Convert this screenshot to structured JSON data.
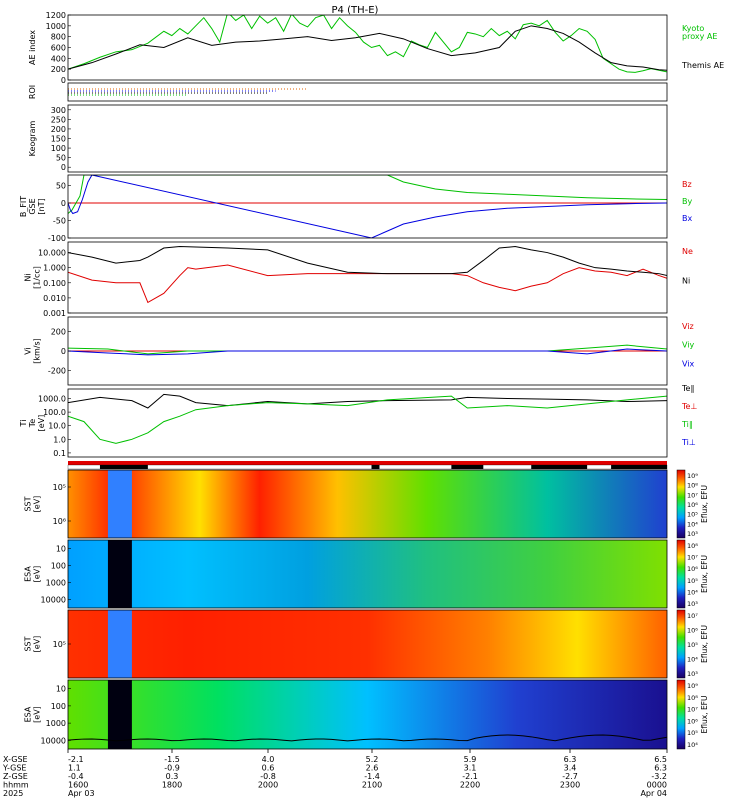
{
  "title": "P4 (TH-E)",
  "colors": {
    "ae_kyoto": "#00c000",
    "ae_themis": "#000000",
    "red": "#e00000",
    "green": "#00c000",
    "blue": "#0000e0"
  },
  "chart_data": [
    {
      "id": "ae",
      "type": "line",
      "ylabel": "AE index",
      "yticks": [
        "0",
        "200",
        "400",
        "600",
        "800",
        "1000",
        "1200"
      ],
      "ylim": [
        0,
        1200
      ],
      "x_range": [
        1600,
        2350
      ],
      "series": [
        {
          "name": "Kyoto proxy AE",
          "label_lines": [
            "Kyoto",
            "proxy AE"
          ],
          "color": "#00c000",
          "x": [
            1600,
            1620,
            1640,
            1660,
            1680,
            1700,
            1720,
            1730,
            1740,
            1750,
            1760,
            1770,
            1780,
            1790,
            1800,
            1810,
            1820,
            1830,
            1840,
            1850,
            1860,
            1870,
            1880,
            1890,
            1900,
            1910,
            1920,
            1930,
            1940,
            1950,
            1960,
            1970,
            1980,
            1990,
            2000,
            2010,
            2020,
            2030,
            2040,
            2050,
            2060,
            2070,
            2080,
            2090,
            2100,
            2110,
            2120,
            2130,
            2140,
            2150,
            2160,
            2170,
            2180,
            2190,
            2200,
            2210,
            2220,
            2230,
            2240,
            2250,
            2260,
            2270,
            2280,
            2290,
            2300,
            2310,
            2320,
            2330,
            2340,
            2350
          ],
          "y": [
            200,
            300,
            420,
            520,
            560,
            680,
            900,
            820,
            950,
            850,
            1000,
            1150,
            950,
            700,
            1250,
            1100,
            1200,
            950,
            1180,
            1050,
            1150,
            900,
            1220,
            1050,
            980,
            1150,
            1200,
            950,
            1150,
            1000,
            880,
            700,
            600,
            640,
            450,
            520,
            430,
            720,
            650,
            600,
            880,
            700,
            520,
            600,
            880,
            850,
            800,
            950,
            820,
            900,
            760,
            1020,
            1050,
            1000,
            1100,
            880,
            720,
            820,
            950,
            900,
            750,
            400,
            300,
            200,
            150,
            140,
            170,
            210,
            180,
            150
          ]
        },
        {
          "name": "Themis AE",
          "label_lines": [
            "Themis AE"
          ],
          "color": "#000000",
          "x": [
            1600,
            1630,
            1660,
            1690,
            1720,
            1750,
            1780,
            1810,
            1840,
            1870,
            1900,
            1930,
            1960,
            1990,
            2020,
            2050,
            2080,
            2110,
            2140,
            2160,
            2180,
            2200,
            2220,
            2240,
            2260,
            2280,
            2300,
            2320,
            2340,
            2350
          ],
          "y": [
            200,
            320,
            480,
            650,
            600,
            780,
            640,
            700,
            720,
            760,
            800,
            730,
            780,
            860,
            760,
            580,
            450,
            500,
            600,
            900,
            1000,
            950,
            860,
            700,
            500,
            320,
            260,
            240,
            190,
            180
          ]
        }
      ]
    },
    {
      "id": "roi",
      "type": "line",
      "ylabel": "ROI",
      "yticks": [],
      "series": [
        {
          "name": "roi-1",
          "color": "#e06000",
          "x": [
            1600,
            1900
          ],
          "y": [
            1,
            1
          ]
        },
        {
          "name": "roi-2",
          "color": "#0000e0",
          "x": [
            1600,
            1860
          ],
          "y": [
            2,
            2
          ]
        },
        {
          "name": "roi-3",
          "color": "#000000",
          "x": [
            1600,
            1850
          ],
          "y": [
            3,
            3
          ]
        },
        {
          "name": "roi-4",
          "color": "#00c000",
          "x": [
            1600,
            1750
          ],
          "y": [
            4,
            4
          ]
        }
      ]
    },
    {
      "id": "keogram",
      "type": "heatmap",
      "ylabel": "Keogram",
      "yticks": [
        "0",
        "50",
        "100",
        "150",
        "200",
        "250",
        "300"
      ],
      "ylim": [
        0,
        300
      ]
    },
    {
      "id": "bfield",
      "type": "line",
      "ylabel_lines": [
        "B_FIT",
        "GSE",
        "[nT]"
      ],
      "yticks": [
        "-100",
        "-50",
        "0",
        "50"
      ],
      "ylim": [
        -100,
        80
      ],
      "series": [
        {
          "name": "Bz",
          "color": "#e00000",
          "x": [
            1600,
            2350
          ],
          "y": [
            0,
            0
          ]
        },
        {
          "name": "By",
          "color": "#00c000",
          "x": [
            1600,
            1605,
            1615,
            1620,
            1640,
            1650,
            1660,
            2000,
            2020,
            2060,
            2100,
            2150,
            2200,
            2250,
            2300,
            2350
          ],
          "y": [
            -30,
            -20,
            20,
            80,
            80,
            80,
            80,
            80,
            60,
            40,
            30,
            25,
            20,
            15,
            12,
            10
          ]
        },
        {
          "name": "Bx",
          "color": "#0000e0",
          "x": [
            1600,
            1603,
            1606,
            1612,
            1618,
            1625,
            1630,
            1980,
            2000,
            2020,
            2060,
            2100,
            2150,
            2200,
            2250,
            2300,
            2350
          ],
          "y": [
            0,
            -20,
            -30,
            -25,
            10,
            60,
            80,
            -100,
            -80,
            -60,
            -40,
            -25,
            -15,
            -10,
            -5,
            -2,
            0
          ]
        }
      ]
    },
    {
      "id": "density",
      "type": "line",
      "ylabel_lines": [
        "Ni",
        "[1/cc]"
      ],
      "ylog": true,
      "yticks": [
        "0.001",
        "0.010",
        "0.100",
        "1.000",
        "10.000"
      ],
      "ylim": [
        0.001,
        50
      ],
      "series": [
        {
          "name": "Ne",
          "color": "#e00000",
          "x": [
            1600,
            1630,
            1660,
            1690,
            1700,
            1720,
            1740,
            1750,
            1760,
            1800,
            1850,
            1900,
            2000,
            2080,
            2100,
            2120,
            2140,
            2160,
            2180,
            2200,
            2220,
            2240,
            2260,
            2280,
            2300,
            2320,
            2340,
            2350
          ],
          "y": [
            0.5,
            0.15,
            0.1,
            0.1,
            0.005,
            0.02,
            0.3,
            1,
            0.8,
            1.5,
            0.3,
            0.4,
            0.4,
            0.4,
            0.3,
            0.1,
            0.05,
            0.03,
            0.06,
            0.1,
            0.4,
            1,
            0.6,
            0.5,
            0.3,
            0.8,
            0.3,
            0.2
          ]
        },
        {
          "name": "Ni",
          "color": "#000000",
          "x": [
            1600,
            1630,
            1660,
            1690,
            1700,
            1720,
            1740,
            1800,
            1850,
            1900,
            1950,
            2000,
            2080,
            2100,
            2120,
            2140,
            2160,
            2180,
            2200,
            2220,
            2240,
            2260,
            2280,
            2300,
            2320,
            2340,
            2350
          ],
          "y": [
            10,
            5,
            2,
            3,
            5,
            20,
            25,
            20,
            15,
            2,
            0.5,
            0.4,
            0.4,
            0.5,
            3,
            20,
            25,
            15,
            10,
            5,
            2,
            1,
            0.8,
            0.6,
            0.5,
            0.4,
            0.3
          ]
        }
      ]
    },
    {
      "id": "velocity",
      "type": "line",
      "ylabel_lines": [
        "Vi",
        "[km/s]"
      ],
      "yticks": [
        "-200",
        "0",
        "200"
      ],
      "ylim": [
        -350,
        350
      ],
      "series": [
        {
          "name": "Viz",
          "color": "#e00000",
          "x": [
            1600,
            2350
          ],
          "y": [
            0,
            0
          ]
        },
        {
          "name": "Viy",
          "color": "#00c000",
          "x": [
            1600,
            1650,
            1700,
            1750,
            2200,
            2250,
            2300,
            2350
          ],
          "y": [
            30,
            20,
            -30,
            0,
            0,
            30,
            60,
            20
          ]
        },
        {
          "name": "Vix",
          "color": "#0000e0",
          "x": [
            1600,
            1650,
            1700,
            1750,
            1800,
            2200,
            2250,
            2300,
            2350
          ],
          "y": [
            0,
            -20,
            -40,
            -30,
            0,
            0,
            -30,
            20,
            0
          ]
        }
      ]
    },
    {
      "id": "temperature",
      "type": "line",
      "ylabel_lines": [
        "Ti",
        "Te",
        "[eV]"
      ],
      "ylog": true,
      "yticks": [
        "0.1",
        "1.0",
        "10.0",
        "100.0",
        "1000.0"
      ],
      "ylim": [
        0.05,
        5000
      ],
      "legend": [
        "Te∥",
        "Te⊥",
        "Ti∥",
        "Ti⊥"
      ],
      "series": [
        {
          "name": "Te",
          "color": "#000000",
          "x": [
            1600,
            1640,
            1680,
            1700,
            1720,
            1740,
            1760,
            1800,
            1850,
            1900,
            1950,
            2000,
            2080,
            2100,
            2150,
            2200,
            2250,
            2300,
            2350
          ],
          "y": [
            500,
            1200,
            700,
            200,
            2000,
            1500,
            500,
            300,
            600,
            400,
            600,
            700,
            800,
            1200,
            1000,
            900,
            800,
            600,
            700
          ]
        },
        {
          "name": "Ti",
          "color": "#00c000",
          "x": [
            1600,
            1620,
            1640,
            1660,
            1680,
            1700,
            1720,
            1740,
            1760,
            1800,
            1850,
            1900,
            1950,
            2000,
            2080,
            2100,
            2150,
            2200,
            2250,
            2300,
            2350
          ],
          "y": [
            50,
            20,
            1,
            0.5,
            1,
            3,
            20,
            50,
            150,
            300,
            500,
            400,
            300,
            800,
            1500,
            200,
            300,
            200,
            400,
            800,
            1500
          ]
        }
      ]
    },
    {
      "id": "sst_omni",
      "type": "heatmap",
      "ylabel_lines": [
        "SST",
        "[eV]"
      ],
      "yticks": [
        "10⁶",
        "10⁵"
      ],
      "colorbar_label": "Eflux, EFU",
      "colorbar_ticks": [
        "10⁹",
        "10⁸",
        "10⁷",
        "10⁶",
        "10⁵",
        "10⁴",
        "10³"
      ]
    },
    {
      "id": "esa_ion",
      "type": "heatmap",
      "ylabel_lines": [
        "ESA",
        "[eV]"
      ],
      "yticks": [
        "10000",
        "1000",
        "100",
        "10"
      ],
      "colorbar_label": "Eflux, EFU",
      "colorbar_ticks": [
        "10⁸",
        "10⁷",
        "10⁶",
        "10⁵",
        "10⁴",
        "10³"
      ]
    },
    {
      "id": "sst_elec",
      "type": "heatmap",
      "ylabel_lines": [
        "SST",
        "[eV]"
      ],
      "yticks": [
        "10⁵"
      ],
      "colorbar_label": "Eflux, EFU",
      "colorbar_ticks": [
        "10⁷",
        "10⁶",
        "10⁵",
        "10⁴",
        "10³"
      ]
    },
    {
      "id": "esa_elec",
      "type": "heatmap",
      "ylabel_lines": [
        "ESA",
        "[eV]"
      ],
      "yticks": [
        "10000",
        "1000",
        "100",
        "10"
      ],
      "colorbar_label": "Eflux, EFU",
      "colorbar_ticks": [
        "10⁹",
        "10⁸",
        "10⁷",
        "10⁶",
        "10⁵",
        "10⁴"
      ]
    }
  ],
  "x_axis": {
    "row_labels": [
      "X-GSE",
      "Y-GSE",
      "Z-GSE",
      "hhmm",
      "2025"
    ],
    "ticks": [
      {
        "vals": [
          "-2.1",
          "1.1",
          "-0.4",
          "1600",
          "Apr 03"
        ]
      },
      {
        "vals": [
          "-1.5",
          "-0.9",
          "0.3",
          "1800",
          ""
        ]
      },
      {
        "vals": [
          "4.0",
          "0.6",
          "-0.8",
          "2000",
          ""
        ]
      },
      {
        "vals": [
          "5.2",
          "2.6",
          "-1.4",
          "2100",
          ""
        ]
      },
      {
        "vals": [
          "5.9",
          "3.1",
          "-2.1",
          "2200",
          ""
        ]
      },
      {
        "vals": [
          "6.3",
          "3.4",
          "-2.7",
          "2300",
          ""
        ]
      },
      {
        "vals": [
          "6.5",
          "6.3",
          "-3.2",
          "0000",
          "Apr 04"
        ]
      }
    ]
  }
}
